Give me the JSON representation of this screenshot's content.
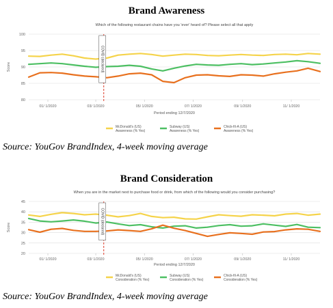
{
  "charts": [
    {
      "heading": "Brand Awareness",
      "source": "Source: YouGov BrandIndex, 4-week moving average",
      "chart_data": {
        "type": "line",
        "title": "Which of the following restaurant chains have you 'ever' heard of? Please select all that apply",
        "xlabel": "Period ending 12/7/2020",
        "ylabel": "Score",
        "ylim": [
          80,
          100
        ],
        "yticks": [
          80,
          85,
          90,
          95,
          100
        ],
        "x": [
          "12/8/2019",
          "12/22/2019",
          "1/5/2020",
          "1/19/2020",
          "2/2/2020",
          "2/16/2020",
          "3/1/2020",
          "3/15/2020",
          "3/29/2020",
          "4/12/2020",
          "4/26/2020",
          "5/10/2020",
          "5/24/2020",
          "6/7/2020",
          "6/21/2020",
          "7/5/2020",
          "7/19/2020",
          "8/2/2020",
          "8/16/2020",
          "8/30/2020",
          "9/13/2020",
          "9/27/2020",
          "10/11/2020",
          "10/25/2020",
          "11/8/2020",
          "11/22/2020",
          "12/7/2020"
        ],
        "xticks": [
          "01/ 1/2020",
          "03/ 1/2020",
          "05/ 1/2020",
          "07/ 1/2020",
          "09/ 1/2020",
          "11/ 1/2020"
        ],
        "xtick_dates": [
          "1/1/2020",
          "3/1/2020",
          "5/1/2020",
          "7/1/2020",
          "9/1/2020",
          "11/1/2020"
        ],
        "series": [
          {
            "name": "McDonald's (US) Awareness (% Yes)",
            "color": "#f5d34a",
            "values": [
              93.3,
              93.2,
              93.6,
              93.9,
              93.4,
              92.7,
              92.4,
              92.7,
              93.6,
              93.9,
              94.1,
              93.8,
              93.3,
              93.6,
              93.9,
              93.8,
              93.5,
              93.4,
              93.6,
              93.8,
              93.6,
              93.5,
              93.8,
              93.9,
              93.7,
              94.1,
              93.9
            ]
          },
          {
            "name": "Subway (US) Awareness (% Yes)",
            "color": "#4cbf62",
            "values": [
              90.8,
              91.0,
              91.2,
              91.0,
              90.6,
              90.2,
              89.9,
              90.1,
              90.2,
              90.5,
              90.2,
              89.4,
              88.8,
              89.6,
              90.3,
              90.8,
              90.6,
              90.5,
              90.8,
              91.0,
              90.7,
              90.9,
              91.2,
              91.5,
              91.9,
              91.6,
              91.1
            ]
          },
          {
            "name": "Chick-fil-A (US) Awareness (% Yes)",
            "color": "#e8701e",
            "values": [
              86.9,
              88.2,
              88.3,
              88.1,
              87.6,
              87.2,
              87.0,
              86.7,
              87.2,
              87.9,
              88.1,
              87.6,
              85.6,
              85.2,
              86.7,
              87.5,
              87.6,
              87.3,
              87.1,
              87.6,
              87.5,
              87.2,
              87.9,
              88.4,
              88.8,
              89.6,
              88.6
            ]
          }
        ],
        "annotation": {
          "label": "COVID (declared)",
          "x": "3/11/2020"
        },
        "grid": true,
        "legend": "bottom"
      }
    },
    {
      "heading": "Brand Consideration",
      "source": "Source: YouGov BrandIndex, 4-week moving average",
      "chart_data": {
        "type": "line",
        "title": "When you are in the market next to purchase food or drink, from which of the following would you consider purchasing?",
        "xlabel": "Period ending 12/7/2020",
        "ylabel": "Score",
        "ylim": [
          20,
          45
        ],
        "yticks": [
          20,
          25,
          30,
          35,
          40,
          45
        ],
        "x": [
          "12/8/2019",
          "12/22/2019",
          "1/5/2020",
          "1/19/2020",
          "2/2/2020",
          "2/16/2020",
          "3/1/2020",
          "3/15/2020",
          "3/29/2020",
          "4/12/2020",
          "4/26/2020",
          "5/10/2020",
          "5/24/2020",
          "6/7/2020",
          "6/21/2020",
          "7/5/2020",
          "7/19/2020",
          "8/2/2020",
          "8/16/2020",
          "8/30/2020",
          "9/13/2020",
          "9/27/2020",
          "10/11/2020",
          "10/25/2020",
          "11/8/2020",
          "11/22/2020",
          "12/7/2020"
        ],
        "xticks": [
          "01/ 1/2020",
          "03/ 1/2020",
          "05/ 1/2020",
          "07/ 1/2020",
          "09/ 1/2020",
          "11/ 1/2020"
        ],
        "xtick_dates": [
          "1/1/2020",
          "3/1/2020",
          "5/1/2020",
          "7/1/2020",
          "9/1/2020",
          "11/1/2020"
        ],
        "series": [
          {
            "name": "McDonald's (US) Consideration (% Yes)",
            "color": "#f5d34a",
            "values": [
              38.5,
              37.8,
              38.8,
              39.6,
              39.2,
              38.6,
              38.9,
              38.4,
              37.6,
              38.2,
              39.2,
              37.8,
              37.2,
              37.4,
              36.6,
              36.5,
              37.6,
              38.6,
              38.2,
              37.9,
              38.6,
              38.4,
              38.1,
              38.9,
              39.2,
              38.4,
              38.9
            ]
          },
          {
            "name": "Subway (US) Consideration (% Yes)",
            "color": "#4cbf62",
            "values": [
              36.8,
              35.6,
              35.2,
              35.6,
              36.1,
              35.5,
              34.6,
              35.1,
              34.2,
              33.4,
              33.8,
              32.8,
              32.2,
              33.1,
              33.3,
              32.2,
              32.6,
              33.4,
              33.8,
              33.1,
              33.3,
              34.2,
              33.6,
              33.0,
              33.9,
              32.6,
              32.4
            ]
          },
          {
            "name": "Chick-fil-A (US) Consideration (% Yes)",
            "color": "#e8701e",
            "values": [
              31.4,
              30.2,
              31.6,
              32.0,
              31.1,
              30.6,
              30.6,
              30.8,
              31.3,
              31.0,
              30.6,
              31.8,
              33.6,
              32.1,
              31.0,
              29.6,
              28.2,
              29.1,
              29.9,
              29.6,
              29.2,
              30.3,
              30.5,
              31.3,
              31.8,
              31.6,
              30.6
            ]
          }
        ],
        "annotation": {
          "label": "COVID (declared)",
          "x": "3/11/2020"
        },
        "grid": true,
        "legend": "bottom"
      }
    }
  ]
}
